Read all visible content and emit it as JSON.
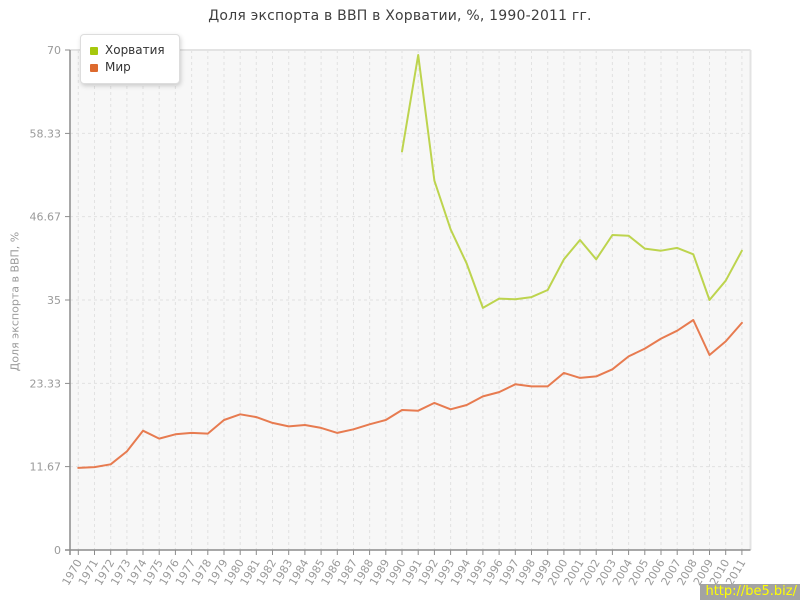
{
  "title": "Доля экспорта в ВВП в Хорватии, %, 1990-2011 гг.",
  "ylabel": "Доля экспорта в ВВП, %",
  "legend": {
    "items": [
      {
        "label": "Хорватия",
        "color": "#a6c80d"
      },
      {
        "label": "Мир",
        "color": "#dd6a2e"
      }
    ]
  },
  "watermark": "http://be5.biz/",
  "colors": {
    "plot_bg": "#f7f7f7",
    "grid": "#e2e2e2",
    "plot_border": "#e3e3e3",
    "axis": "#8c8c8c",
    "tick_text": "#9a9a9a",
    "title_text": "#3f3f3f",
    "watermark_bg": "#a3a3a3",
    "watermark_text": "#ffff00"
  },
  "chart_data": {
    "type": "line",
    "title": "Доля экспорта в ВВП в Хорватии, %, 1990-2011 гг.",
    "xlabel": "",
    "ylabel": "Доля экспорта в ВВП, %",
    "ylim": [
      0,
      70
    ],
    "yticks": [
      0,
      11.67,
      23.33,
      35,
      46.67,
      58.33,
      70
    ],
    "ytick_labels": [
      "0",
      "11.67",
      "23.33",
      "35",
      "46.67",
      "58.33",
      "70"
    ],
    "grid": "dashed",
    "legend_position": "top-left-inside",
    "years": [
      1970,
      1971,
      1972,
      1973,
      1974,
      1975,
      1976,
      1977,
      1978,
      1979,
      1980,
      1981,
      1982,
      1983,
      1984,
      1985,
      1986,
      1987,
      1988,
      1989,
      1990,
      1991,
      1992,
      1993,
      1994,
      1995,
      1996,
      1997,
      1998,
      1999,
      2000,
      2001,
      2002,
      2003,
      2004,
      2005,
      2006,
      2007,
      2008,
      2009,
      2010,
      2011
    ],
    "series": [
      {
        "name": "Хорватия",
        "color": "#bdd44e",
        "start_year": 1990,
        "values": [
          55.8,
          69.3,
          51.7,
          44.9,
          40.1,
          33.9,
          35.2,
          35.1,
          35.4,
          36.4,
          40.7,
          43.4,
          40.7,
          44.1,
          44.0,
          42.2,
          41.9,
          42.3,
          41.4,
          35.0,
          37.7,
          41.9
        ]
      },
      {
        "name": "Мир",
        "color": "#e77b50",
        "start_year": 1970,
        "values": [
          11.5,
          11.6,
          12.0,
          13.8,
          16.7,
          15.6,
          16.2,
          16.4,
          16.3,
          18.2,
          19.0,
          18.6,
          17.8,
          17.3,
          17.5,
          17.1,
          16.4,
          16.9,
          17.6,
          18.2,
          19.6,
          19.5,
          20.6,
          19.7,
          20.3,
          21.5,
          22.1,
          23.2,
          22.9,
          22.9,
          24.8,
          24.1,
          24.3,
          25.3,
          27.1,
          28.2,
          29.6,
          30.7,
          32.2,
          27.3,
          29.2,
          31.8
        ]
      }
    ]
  }
}
